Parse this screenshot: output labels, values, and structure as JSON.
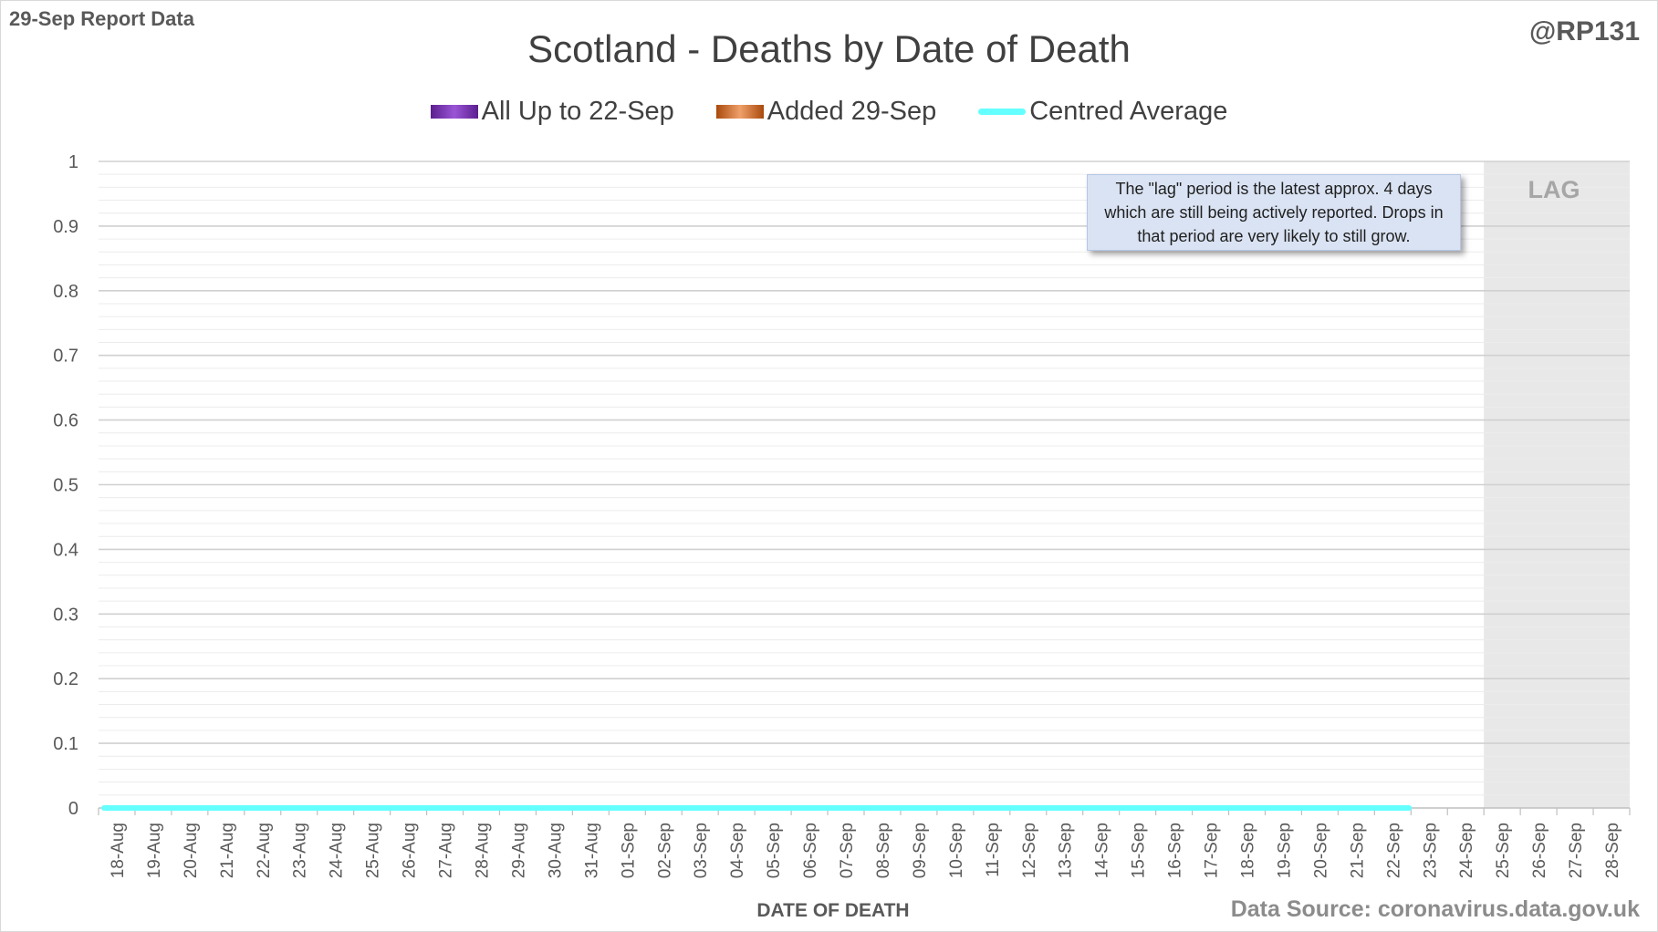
{
  "header": {
    "report_label": "29-Sep Report Data",
    "author": "@RP131",
    "source": "Data Source: coronavirus.data.gov.uk"
  },
  "callout": {
    "text": "The \"lag\" period is the latest approx. 4 days which are still being actively reported. Drops in that period are very likely to still grow."
  },
  "lag_label": "LAG",
  "colors": {
    "all_up_to": "#7030a0",
    "added": "#c55a11",
    "centred_average": "#66ffff",
    "lag_band": "#e8e8e8",
    "grid": "#d9d9d9"
  },
  "chart_data": {
    "type": "bar",
    "title": "Scotland - Deaths by Date of Death",
    "xlabel": "DATE OF DEATH",
    "ylabel": "",
    "ylim": [
      0,
      1
    ],
    "yticks": [
      "0",
      "0.1",
      "0.2",
      "0.3",
      "0.4",
      "0.5",
      "0.6",
      "0.7",
      "0.8",
      "0.9",
      "1"
    ],
    "legend_position": "top",
    "grid": true,
    "categories": [
      "18-Aug",
      "19-Aug",
      "20-Aug",
      "21-Aug",
      "22-Aug",
      "23-Aug",
      "24-Aug",
      "25-Aug",
      "26-Aug",
      "27-Aug",
      "28-Aug",
      "29-Aug",
      "30-Aug",
      "31-Aug",
      "01-Sep",
      "02-Sep",
      "03-Sep",
      "04-Sep",
      "05-Sep",
      "06-Sep",
      "07-Sep",
      "08-Sep",
      "09-Sep",
      "10-Sep",
      "11-Sep",
      "12-Sep",
      "13-Sep",
      "14-Sep",
      "15-Sep",
      "16-Sep",
      "17-Sep",
      "18-Sep",
      "19-Sep",
      "20-Sep",
      "21-Sep",
      "22-Sep",
      "23-Sep",
      "24-Sep",
      "25-Sep",
      "26-Sep",
      "27-Sep",
      "28-Sep"
    ],
    "lag_start": "25-Sep",
    "series": [
      {
        "name": "All Up to 22-Sep",
        "type": "bar",
        "values": [
          0,
          0,
          0,
          0,
          0,
          0,
          0,
          0,
          0,
          0,
          0,
          0,
          0,
          0,
          0,
          0,
          0,
          0,
          0,
          0,
          0,
          0,
          0,
          0,
          0,
          0,
          0,
          0,
          0,
          0,
          0,
          0,
          0,
          0,
          0,
          0,
          0,
          0,
          0,
          0,
          0,
          0
        ]
      },
      {
        "name": "Added 29-Sep",
        "type": "bar",
        "values": [
          0,
          0,
          0,
          0,
          0,
          0,
          0,
          0,
          0,
          0,
          0,
          0,
          0,
          0,
          0,
          0,
          0,
          0,
          0,
          0,
          0,
          0,
          0,
          0,
          0,
          0,
          0,
          0,
          0,
          0,
          0,
          0,
          0,
          0,
          0,
          0,
          0,
          0,
          0,
          0,
          0,
          0
        ]
      },
      {
        "name": "Centred Average",
        "type": "line",
        "values": [
          0,
          0,
          0,
          0,
          0,
          0,
          0,
          0,
          0,
          0,
          0,
          0,
          0,
          0,
          0,
          0,
          0,
          0,
          0,
          0,
          0,
          0,
          0,
          0,
          0,
          0,
          0,
          0,
          0,
          0,
          0,
          0,
          0,
          0,
          0,
          0,
          null,
          null,
          null,
          null,
          null,
          null
        ]
      }
    ]
  }
}
